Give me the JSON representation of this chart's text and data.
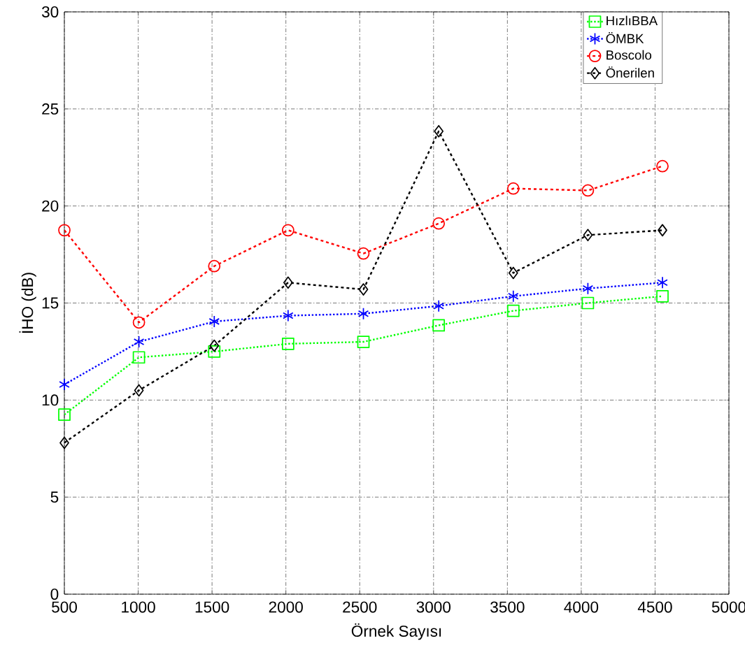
{
  "chart_data": {
    "type": "line",
    "xlabel": "Örnek Sayısı",
    "ylabel": "İHO (dB)",
    "xlim": [
      500,
      5000
    ],
    "ylim": [
      0,
      30
    ],
    "xticks": [
      500,
      1000,
      1500,
      2000,
      2500,
      3000,
      3500,
      4000,
      4500,
      5000
    ],
    "yticks": [
      0,
      5,
      10,
      15,
      20,
      25,
      30
    ],
    "grid": true,
    "legend": "top right",
    "x": [
      500,
      1005,
      1515,
      2015,
      2525,
      3035,
      3540,
      4045,
      4550
    ],
    "series": [
      {
        "name": "HızlıBBA",
        "color": "#00ff00",
        "marker": "square",
        "line_style": "dotted",
        "values": [
          9.25,
          12.2,
          12.5,
          12.9,
          13.0,
          13.85,
          14.6,
          15.0,
          15.35
        ]
      },
      {
        "name": "ÖMBK",
        "color": "#0000ff",
        "marker": "cross",
        "line_style": "dotted",
        "values": [
          10.8,
          13.0,
          14.05,
          14.35,
          14.45,
          14.85,
          15.35,
          15.75,
          16.05
        ]
      },
      {
        "name": "Boscolo",
        "color": "#ff0000",
        "marker": "circle",
        "line_style": "dashed",
        "values": [
          18.75,
          14.0,
          16.9,
          18.75,
          17.55,
          19.1,
          20.9,
          20.8,
          22.05
        ]
      },
      {
        "name": "Önerilen",
        "color": "#000000",
        "marker": "diamond",
        "line_style": "dashed",
        "values": [
          7.8,
          10.5,
          12.8,
          16.05,
          15.7,
          23.85,
          16.55,
          18.5,
          18.75
        ]
      }
    ]
  }
}
